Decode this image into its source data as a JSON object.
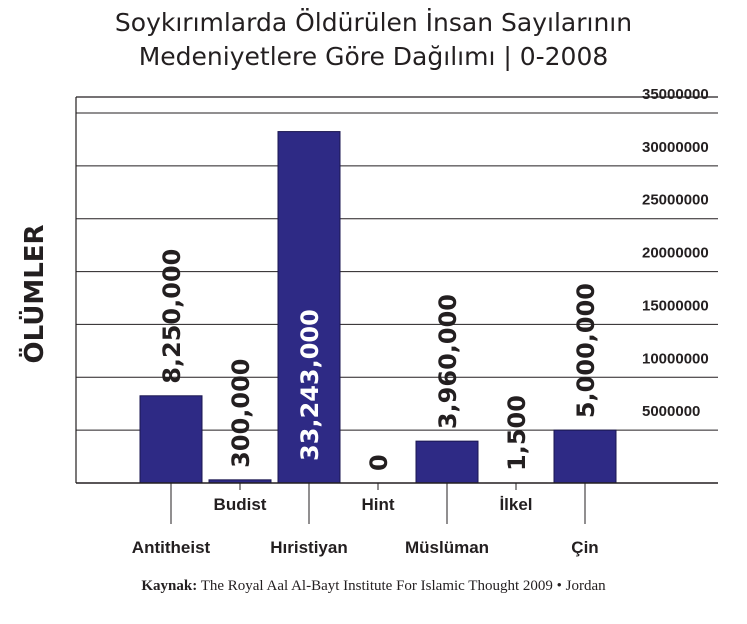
{
  "chart_data": {
    "type": "bar",
    "title": "Soykırımlarda Öldürülen İnsan Sayılarının",
    "subtitle": "Medeniyetlere Göre Dağılımı | 0-2008",
    "ylabel": "ÖLÜMLER",
    "xlabel": "",
    "categories": [
      "Antitheist",
      "Budist",
      "Hıristiyan",
      "Hint",
      "Müslüman",
      "İlkel",
      "Çin"
    ],
    "values": [
      8250000,
      300000,
      33243000,
      0,
      3960000,
      1500,
      5000000
    ],
    "value_labels": [
      "8,250,000",
      "300,000",
      "33,243,000",
      "0",
      "3,960,000",
      "1,500",
      "5,000,000"
    ],
    "ylim": [
      0,
      35000000
    ],
    "yticks": [
      5000000,
      10000000,
      15000000,
      20000000,
      25000000,
      30000000,
      35000000
    ],
    "ytick_labels": [
      "5000000",
      "10000000",
      "15000000",
      "20000000",
      "25000000",
      "30000000",
      "35000000"
    ],
    "grid": true,
    "bar_color": "#2e2a85"
  },
  "source": {
    "label": "Kaynak:",
    "text": " The Royal Aal Al-Bayt Institute For Islamic Thought 2009 • Jordan"
  }
}
